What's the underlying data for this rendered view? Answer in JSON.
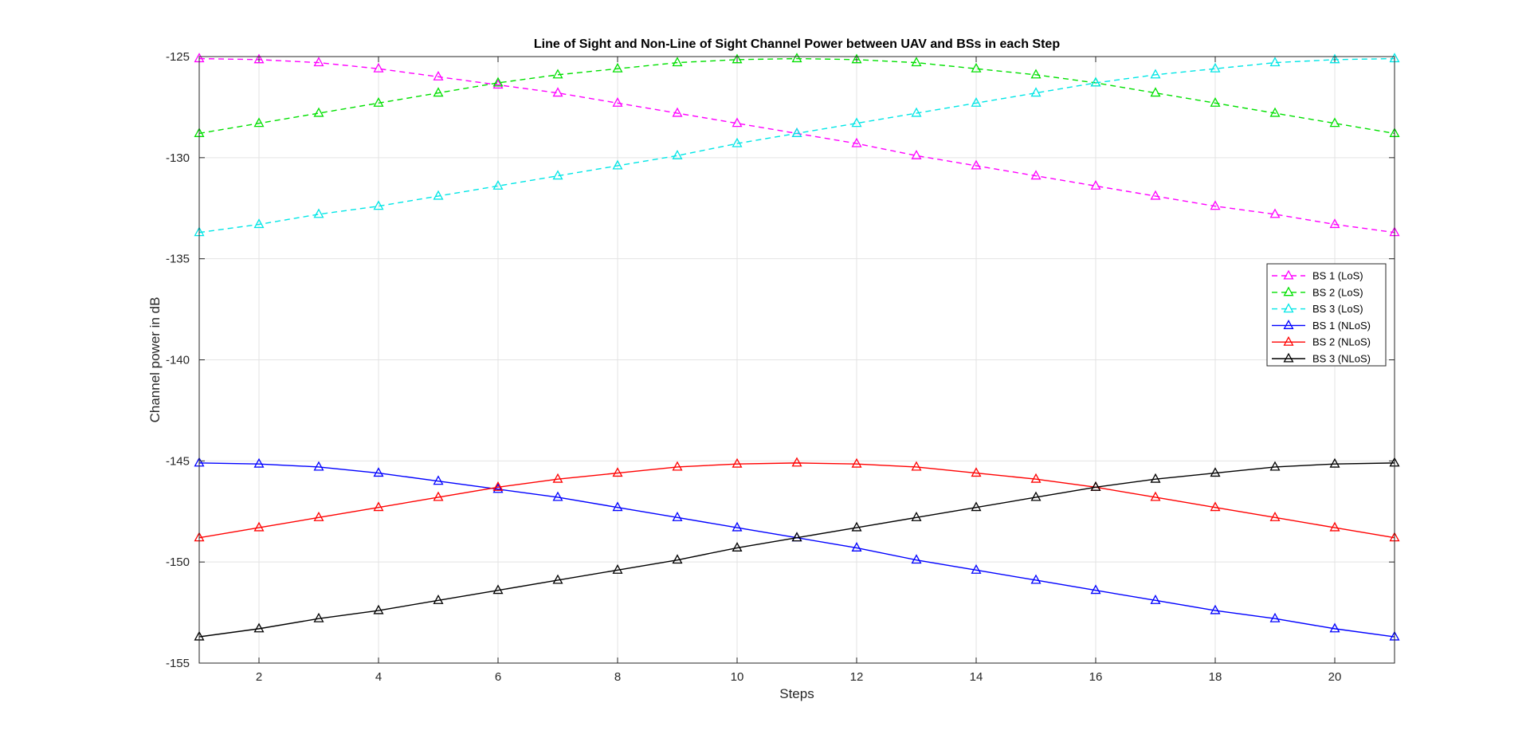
{
  "chart_data": {
    "type": "line",
    "title": "Line of Sight and Non-Line of Sight Channel Power between UAV and BSs in each Step",
    "xlabel": "Steps",
    "ylabel": "Channel power in dB",
    "xlim": [
      1,
      21
    ],
    "ylim": [
      -155,
      -125
    ],
    "xticks": [
      2,
      4,
      6,
      8,
      10,
      12,
      14,
      16,
      18,
      20
    ],
    "yticks": [
      -155,
      -150,
      -145,
      -140,
      -135,
      -130,
      -125
    ],
    "grid": true,
    "legend_position": "right",
    "x": [
      1,
      2,
      3,
      4,
      5,
      6,
      7,
      8,
      9,
      10,
      11,
      12,
      13,
      14,
      15,
      16,
      17,
      18,
      19,
      20,
      21
    ],
    "series": [
      {
        "name": "BS 1 (LoS)",
        "color": "#ff00ff",
        "dash": "dashed",
        "marker": "triangle",
        "values": [
          -125.1,
          -125.15,
          -125.3,
          -125.6,
          -126.0,
          -126.4,
          -126.8,
          -127.3,
          -127.8,
          -128.3,
          -128.8,
          -129.3,
          -129.9,
          -130.4,
          -130.9,
          -131.4,
          -131.9,
          -132.4,
          -132.8,
          -133.3,
          -133.7
        ]
      },
      {
        "name": "BS 2 (LoS)",
        "color": "#00e000",
        "dash": "dashed",
        "marker": "triangle",
        "values": [
          -128.8,
          -128.3,
          -127.8,
          -127.3,
          -126.8,
          -126.3,
          -125.9,
          -125.6,
          -125.3,
          -125.15,
          -125.1,
          -125.15,
          -125.3,
          -125.6,
          -125.9,
          -126.3,
          -126.8,
          -127.3,
          -127.8,
          -128.3,
          -128.8
        ]
      },
      {
        "name": "BS 3 (LoS)",
        "color": "#00e6e6",
        "dash": "dashed",
        "marker": "triangle",
        "values": [
          -133.7,
          -133.3,
          -132.8,
          -132.4,
          -131.9,
          -131.4,
          -130.9,
          -130.4,
          -129.9,
          -129.3,
          -128.8,
          -128.3,
          -127.8,
          -127.3,
          -126.8,
          -126.3,
          -125.9,
          -125.6,
          -125.3,
          -125.15,
          -125.1
        ]
      },
      {
        "name": "BS 1 (NLoS)",
        "color": "#0000ff",
        "dash": "solid",
        "marker": "triangle",
        "values": [
          -145.1,
          -145.15,
          -145.3,
          -145.6,
          -146.0,
          -146.4,
          -146.8,
          -147.3,
          -147.8,
          -148.3,
          -148.8,
          -149.3,
          -149.9,
          -150.4,
          -150.9,
          -151.4,
          -151.9,
          -152.4,
          -152.8,
          -153.3,
          -153.7
        ]
      },
      {
        "name": "BS 2 (NLoS)",
        "color": "#ff0000",
        "dash": "solid",
        "marker": "triangle",
        "values": [
          -148.8,
          -148.3,
          -147.8,
          -147.3,
          -146.8,
          -146.3,
          -145.9,
          -145.6,
          -145.3,
          -145.15,
          -145.1,
          -145.15,
          -145.3,
          -145.6,
          -145.9,
          -146.3,
          -146.8,
          -147.3,
          -147.8,
          -148.3,
          -148.8
        ]
      },
      {
        "name": "BS 3 (NLoS)",
        "color": "#000000",
        "dash": "solid",
        "marker": "triangle",
        "values": [
          -153.7,
          -153.3,
          -152.8,
          -152.4,
          -151.9,
          -151.4,
          -150.9,
          -150.4,
          -149.9,
          -149.3,
          -148.8,
          -148.3,
          -147.8,
          -147.3,
          -146.8,
          -146.3,
          -145.9,
          -145.6,
          -145.3,
          -145.15,
          -145.1
        ]
      }
    ]
  }
}
